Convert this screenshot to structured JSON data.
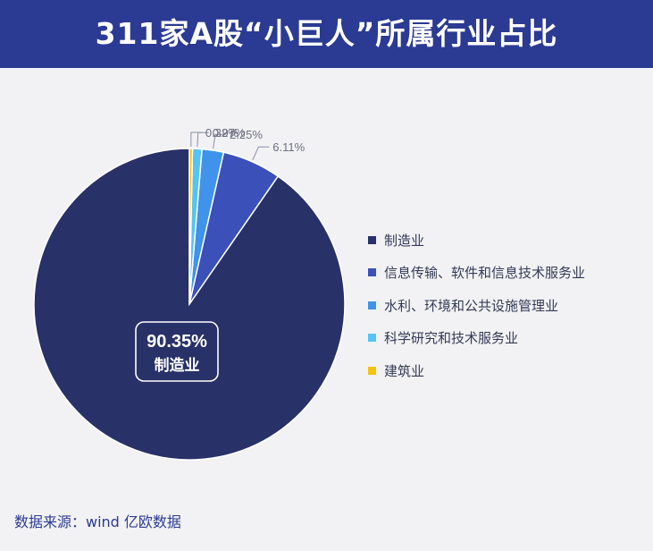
{
  "header": {
    "title": "311家A股“小巨人”所属行业占比"
  },
  "chart_data": {
    "type": "pie",
    "title": "311家A股“小巨人”所属行业占比",
    "categories": [
      "制造业",
      "信息传输、软件和信息技术服务业",
      "水利、环境和公共设施管理业",
      "科学研究和技术服务业",
      "建筑业"
    ],
    "values": [
      90.35,
      6.11,
      2.25,
      0.97,
      0.32
    ],
    "data_labels": [
      "90.35%",
      "6.11%",
      "2.25%",
      "0.97%",
      "0.32%"
    ],
    "colors": [
      "#283168",
      "#3b50b9",
      "#3f93ea",
      "#56c3f5",
      "#f5c40f"
    ],
    "legend_position": "right",
    "center_label": {
      "value": "90.35%",
      "name": "制造业"
    }
  },
  "legend": {
    "items": [
      {
        "label": "制造业",
        "color": "#283168"
      },
      {
        "label": "信息传输、软件和信息技术服务业",
        "color": "#3b50b9"
      },
      {
        "label": "水利、环境和公共设施管理业",
        "color": "#3f93ea"
      },
      {
        "label": "科学研究和技术服务业",
        "color": "#56c3f5"
      },
      {
        "label": "建筑业",
        "color": "#f5c40f"
      }
    ]
  },
  "source": {
    "text": "数据来源：wind  亿欧数据"
  }
}
